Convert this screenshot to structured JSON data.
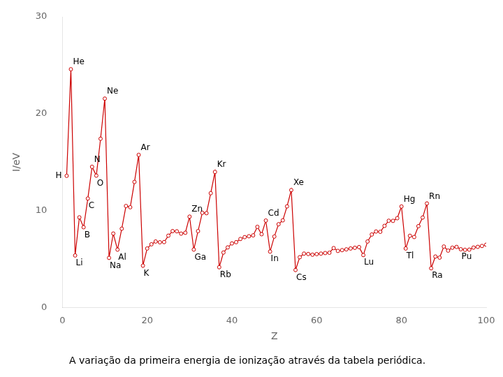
{
  "chart_data": {
    "type": "line",
    "title": "A variação da primeira energia de ionização através da tabela periódica.",
    "xlabel": "Z",
    "ylabel": "I/eV",
    "x": [
      1,
      2,
      3,
      4,
      5,
      6,
      7,
      8,
      9,
      10,
      11,
      12,
      13,
      14,
      15,
      16,
      17,
      18,
      19,
      20,
      21,
      22,
      23,
      24,
      25,
      26,
      27,
      28,
      29,
      30,
      31,
      32,
      33,
      34,
      35,
      36,
      37,
      38,
      39,
      40,
      41,
      42,
      43,
      44,
      45,
      46,
      47,
      48,
      49,
      50,
      51,
      52,
      53,
      54,
      55,
      56,
      57,
      58,
      59,
      60,
      61,
      62,
      63,
      64,
      65,
      66,
      67,
      68,
      69,
      70,
      71,
      72,
      73,
      74,
      75,
      76,
      77,
      78,
      79,
      80,
      81,
      82,
      83,
      84,
      85,
      86,
      87,
      88,
      89,
      90,
      91,
      92,
      93,
      94,
      95,
      96,
      97,
      98,
      99,
      100
    ],
    "values": [
      13.6,
      24.59,
      5.39,
      9.32,
      8.3,
      11.26,
      14.53,
      13.62,
      17.42,
      21.56,
      5.14,
      7.65,
      5.99,
      8.15,
      10.49,
      10.36,
      12.97,
      15.76,
      4.34,
      6.11,
      6.54,
      6.83,
      6.75,
      6.77,
      7.43,
      7.9,
      7.88,
      7.64,
      7.73,
      9.39,
      6.0,
      7.9,
      9.79,
      9.75,
      11.81,
      14.0,
      4.18,
      5.69,
      6.22,
      6.63,
      6.76,
      7.09,
      7.28,
      7.37,
      7.46,
      8.34,
      7.58,
      8.99,
      5.79,
      7.34,
      8.61,
      9.01,
      10.45,
      12.13,
      3.89,
      5.21,
      5.58,
      5.54,
      5.47,
      5.53,
      5.58,
      5.64,
      5.67,
      6.15,
      5.86,
      5.94,
      6.02,
      6.11,
      6.18,
      6.25,
      5.43,
      6.83,
      7.55,
      7.86,
      7.83,
      8.44,
      8.97,
      8.96,
      9.23,
      10.44,
      6.11,
      7.42,
      7.29,
      8.41,
      9.3,
      10.75,
      4.07,
      5.28,
      5.17,
      6.31,
      5.89,
      6.19,
      6.27,
      6.03,
      5.97,
      5.99,
      6.2,
      6.28,
      6.37,
      6.5
    ],
    "color": "#cc0000",
    "marker": "circle",
    "xlim": [
      0,
      100
    ],
    "ylim": [
      0,
      30
    ],
    "xticks": [
      0,
      20,
      40,
      60,
      80,
      100
    ],
    "yticks": [
      0,
      10,
      20,
      30
    ],
    "grid": false,
    "annotations": [
      {
        "text": "H",
        "x": 1,
        "y": 13.6
      },
      {
        "text": "He",
        "x": 2,
        "y": 24.59
      },
      {
        "text": "Li",
        "x": 3,
        "y": 5.39
      },
      {
        "text": "B",
        "x": 5,
        "y": 8.3
      },
      {
        "text": "C",
        "x": 6,
        "y": 11.26
      },
      {
        "text": "N",
        "x": 7,
        "y": 14.53
      },
      {
        "text": "O",
        "x": 8,
        "y": 13.62
      },
      {
        "text": "Ne",
        "x": 10,
        "y": 21.56
      },
      {
        "text": "Na",
        "x": 11,
        "y": 5.14
      },
      {
        "text": "Al",
        "x": 13,
        "y": 5.99
      },
      {
        "text": "Ar",
        "x": 18,
        "y": 15.76
      },
      {
        "text": "K",
        "x": 19,
        "y": 4.34
      },
      {
        "text": "Zn",
        "x": 30,
        "y": 9.39
      },
      {
        "text": "Ga",
        "x": 31,
        "y": 6.0
      },
      {
        "text": "Kr",
        "x": 36,
        "y": 14.0
      },
      {
        "text": "Rb",
        "x": 37,
        "y": 4.18
      },
      {
        "text": "Cd",
        "x": 48,
        "y": 8.99
      },
      {
        "text": "In",
        "x": 49,
        "y": 5.79
      },
      {
        "text": "Xe",
        "x": 54,
        "y": 12.13
      },
      {
        "text": "Cs",
        "x": 55,
        "y": 3.89
      },
      {
        "text": "Lu",
        "x": 71,
        "y": 5.43
      },
      {
        "text": "Hg",
        "x": 80,
        "y": 10.44
      },
      {
        "text": "Tl",
        "x": 81,
        "y": 6.11
      },
      {
        "text": "Rn",
        "x": 86,
        "y": 10.75
      },
      {
        "text": "Ra",
        "x": 87,
        "y": 4.07
      },
      {
        "text": "Pu",
        "x": 94,
        "y": 6.03
      }
    ]
  }
}
